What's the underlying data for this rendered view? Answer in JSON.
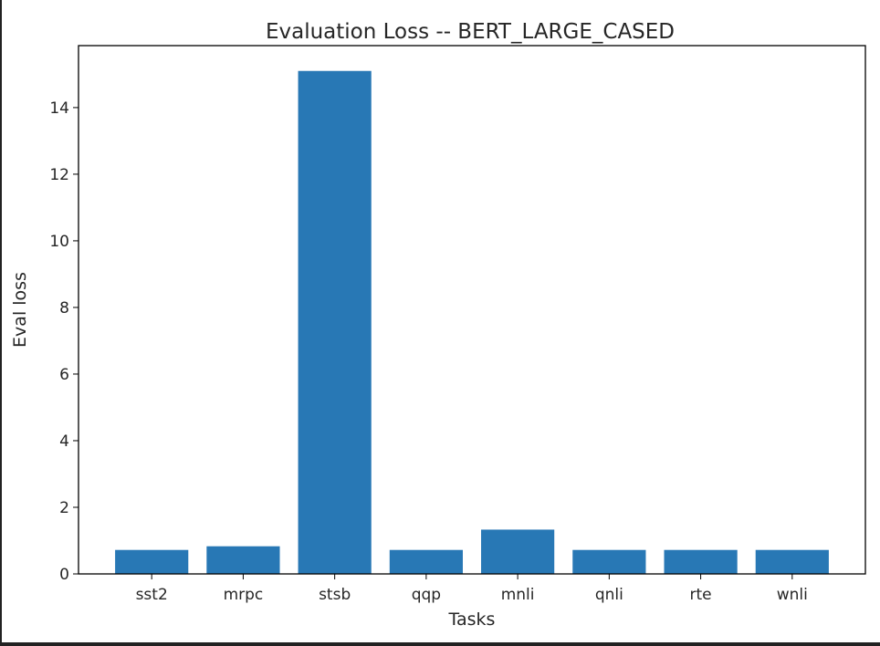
{
  "chart_data": {
    "type": "bar",
    "title": "Evaluation Loss -- BERT_LARGE_CASED",
    "xlabel": "Tasks",
    "ylabel": "Eval loss",
    "categories": [
      "sst2",
      "mrpc",
      "stsb",
      "qqp",
      "mnli",
      "qnli",
      "rte",
      "wnli"
    ],
    "values": [
      0.72,
      0.83,
      15.1,
      0.72,
      1.33,
      0.72,
      0.72,
      0.72
    ],
    "ylim": [
      0,
      15.86
    ],
    "yticks": [
      0,
      2,
      4,
      6,
      8,
      10,
      12,
      14
    ],
    "bar_color": "#2878b5",
    "grid": false,
    "legend": "none"
  }
}
